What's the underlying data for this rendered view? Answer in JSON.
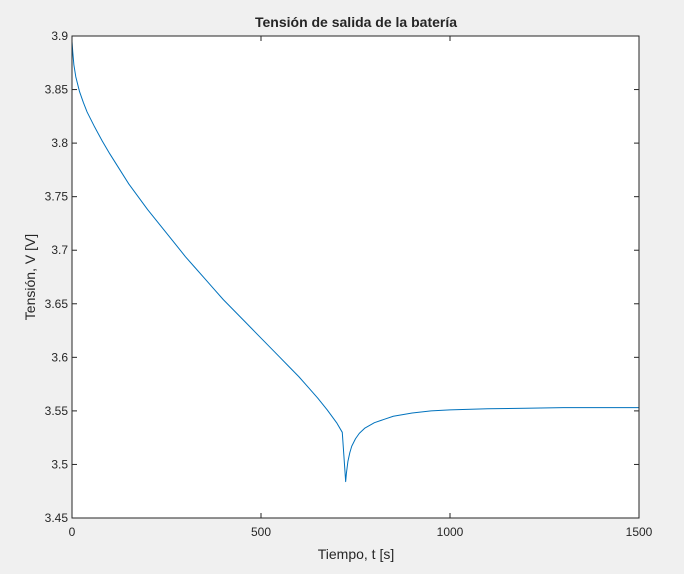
{
  "chart_data": {
    "type": "line",
    "title": "Tensión de salida de la batería",
    "xlabel": "Tiempo, t [s]",
    "ylabel": "Tensión, V [V]",
    "xlim": [
      0,
      1500
    ],
    "ylim": [
      3.45,
      3.9
    ],
    "xticks": [
      0,
      500,
      1000,
      1500
    ],
    "xtick_labels": [
      "0",
      "500",
      "1000",
      "1500"
    ],
    "yticks": [
      3.45,
      3.5,
      3.55,
      3.6,
      3.65,
      3.7,
      3.75,
      3.8,
      3.85,
      3.9
    ],
    "ytick_labels": [
      "3.45",
      "3.5",
      "3.55",
      "3.6",
      "3.65",
      "3.7",
      "3.75",
      "3.8",
      "3.85",
      "3.9"
    ],
    "grid": false,
    "series": [
      {
        "color": "#0072bd",
        "points": [
          [
            0,
            3.895
          ],
          [
            2,
            3.885
          ],
          [
            5,
            3.873
          ],
          [
            10,
            3.862
          ],
          [
            20,
            3.848
          ],
          [
            30,
            3.838
          ],
          [
            40,
            3.829
          ],
          [
            50,
            3.822
          ],
          [
            60,
            3.815
          ],
          [
            80,
            3.802
          ],
          [
            100,
            3.79
          ],
          [
            125,
            3.776
          ],
          [
            150,
            3.762
          ],
          [
            175,
            3.75
          ],
          [
            200,
            3.738
          ],
          [
            225,
            3.727
          ],
          [
            250,
            3.716
          ],
          [
            275,
            3.705
          ],
          [
            300,
            3.694
          ],
          [
            325,
            3.684
          ],
          [
            350,
            3.674
          ],
          [
            375,
            3.664
          ],
          [
            400,
            3.654
          ],
          [
            425,
            3.645
          ],
          [
            450,
            3.636
          ],
          [
            475,
            3.627
          ],
          [
            500,
            3.618
          ],
          [
            525,
            3.609
          ],
          [
            550,
            3.6
          ],
          [
            575,
            3.591
          ],
          [
            600,
            3.582
          ],
          [
            625,
            3.572
          ],
          [
            650,
            3.562
          ],
          [
            675,
            3.551
          ],
          [
            700,
            3.539
          ],
          [
            715,
            3.53
          ],
          [
            724,
            3.484
          ],
          [
            726,
            3.492
          ],
          [
            730,
            3.503
          ],
          [
            735,
            3.511
          ],
          [
            740,
            3.517
          ],
          [
            750,
            3.524
          ],
          [
            760,
            3.529
          ],
          [
            775,
            3.534
          ],
          [
            800,
            3.539
          ],
          [
            825,
            3.542
          ],
          [
            850,
            3.545
          ],
          [
            900,
            3.548
          ],
          [
            950,
            3.55
          ],
          [
            1000,
            3.551
          ],
          [
            1100,
            3.552
          ],
          [
            1200,
            3.5525
          ],
          [
            1300,
            3.553
          ],
          [
            1400,
            3.553
          ],
          [
            1500,
            3.553
          ]
        ]
      }
    ]
  }
}
